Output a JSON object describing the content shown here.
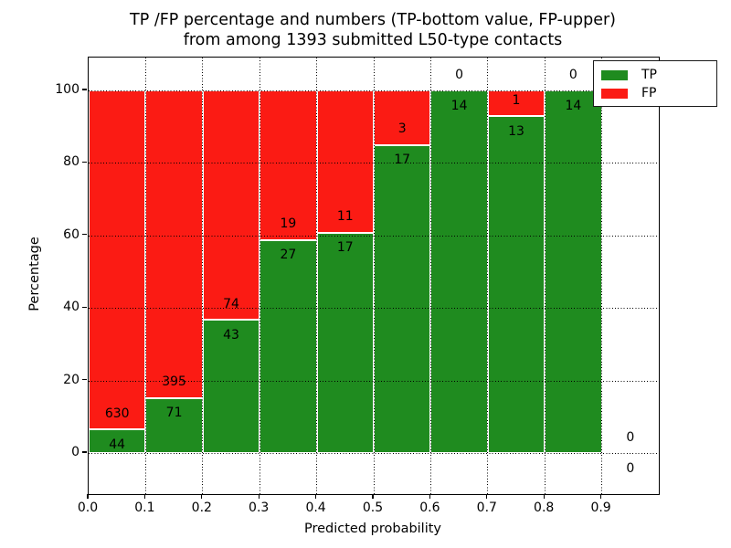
{
  "chart_data": {
    "type": "bar",
    "stacked": true,
    "title": "TP /FP percentage and numbers (TP-bottom value, FP-upper)",
    "subtitle": "from among 1393 submitted L50-type contacts",
    "xlabel": "Predicted probability",
    "ylabel": "Percentage",
    "x_tick_labels": [
      "0.0",
      "0.1",
      "0.2",
      "0.3",
      "0.4",
      "0.5",
      "0.6",
      "0.7",
      "0.8",
      "0.9"
    ],
    "y_ticks": [
      0,
      20,
      40,
      60,
      80,
      100
    ],
    "xlim": [
      0.0,
      1.0
    ],
    "ylim": [
      -11.3,
      109.0
    ],
    "grid": "dotted",
    "bin_width": 0.1,
    "bins": [
      {
        "x0": 0.0,
        "x1": 0.1,
        "tp": 44,
        "fp": 630,
        "tp_percent": 6.5
      },
      {
        "x0": 0.1,
        "x1": 0.2,
        "tp": 71,
        "fp": 395,
        "tp_percent": 15.2
      },
      {
        "x0": 0.2,
        "x1": 0.3,
        "tp": 43,
        "fp": 74,
        "tp_percent": 36.8
      },
      {
        "x0": 0.3,
        "x1": 0.4,
        "tp": 27,
        "fp": 19,
        "tp_percent": 58.7
      },
      {
        "x0": 0.4,
        "x1": 0.5,
        "tp": 17,
        "fp": 11,
        "tp_percent": 60.7
      },
      {
        "x0": 0.5,
        "x1": 0.6,
        "tp": 17,
        "fp": 3,
        "tp_percent": 85.0
      },
      {
        "x0": 0.6,
        "x1": 0.7,
        "tp": 14,
        "fp": 0,
        "tp_percent": 100.0
      },
      {
        "x0": 0.7,
        "x1": 0.8,
        "tp": 13,
        "fp": 1,
        "tp_percent": 92.9
      },
      {
        "x0": 0.8,
        "x1": 0.9,
        "tp": 14,
        "fp": 0,
        "tp_percent": 100.0
      },
      {
        "x0": 0.9,
        "x1": 1.0,
        "tp": 0,
        "fp": 0,
        "tp_percent": null
      }
    ],
    "legend": {
      "position": "upper right",
      "entries": [
        {
          "label": "TP",
          "color": "#1f8b1f"
        },
        {
          "label": "FP",
          "color": "#fb1b14"
        }
      ]
    },
    "colors": {
      "tp": "#1f8b1f",
      "fp": "#fb1b14",
      "bar_edge": "#ffffff",
      "grid": "#000000",
      "text": "#000000"
    }
  }
}
